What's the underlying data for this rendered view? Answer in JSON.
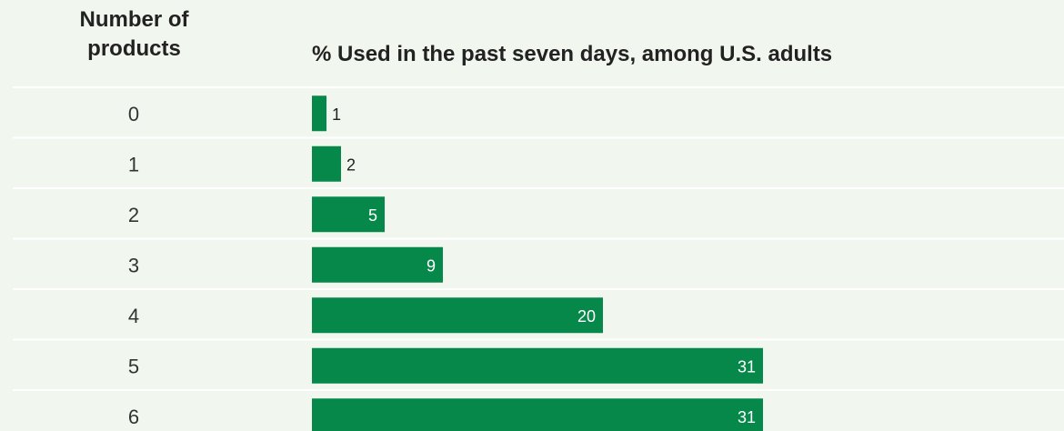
{
  "header": {
    "left_line1": "Number of",
    "left_line2": "products",
    "right": "% Used in the past seven days, among U.S. adults"
  },
  "colors": {
    "bar": "#06884b",
    "background": "#f1f7ef",
    "rule": "#ffffff"
  },
  "chart_data": {
    "type": "bar",
    "orientation": "horizontal",
    "categories": [
      "0",
      "1",
      "2",
      "3",
      "4",
      "5",
      "6"
    ],
    "values": [
      1,
      2,
      5,
      9,
      20,
      31,
      31
    ],
    "xlabel": "% Used in the past seven days, among U.S. adults",
    "ylabel": "Number of products",
    "xlim": [
      0,
      31
    ],
    "grid": false,
    "legend": "none"
  }
}
